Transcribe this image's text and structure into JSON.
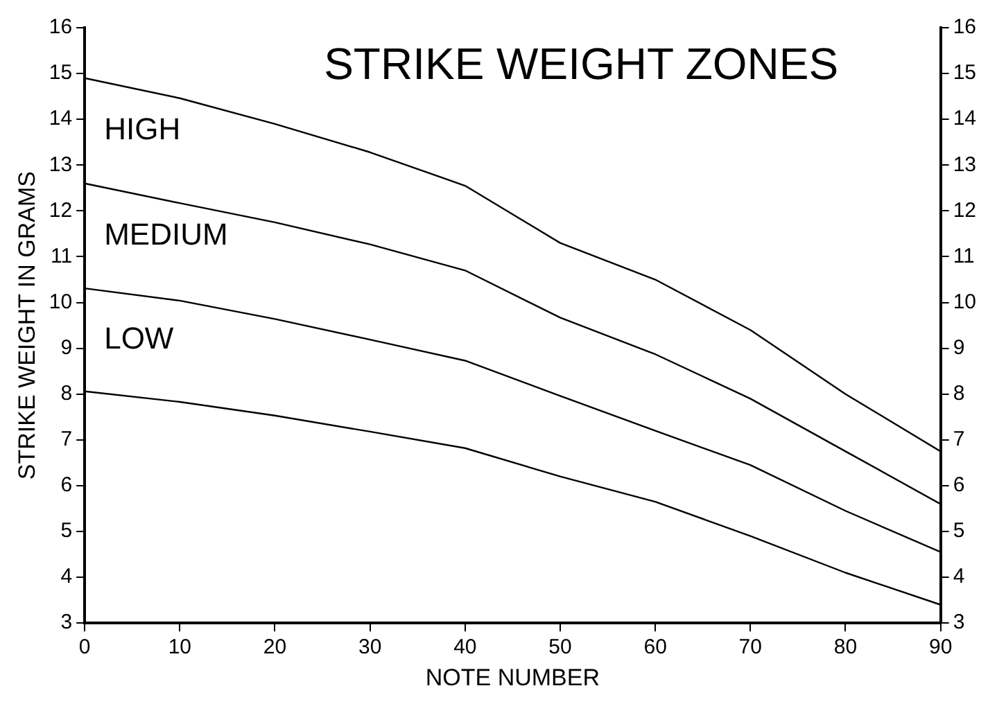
{
  "chart_data": {
    "type": "line",
    "title": "STRIKE WEIGHT ZONES",
    "xlabel": "NOTE NUMBER",
    "ylabel": "STRIKE WEIGHT IN GRAMS",
    "x": [
      0,
      10,
      20,
      30,
      40,
      50,
      60,
      70,
      80,
      90
    ],
    "series": [
      {
        "color": "#000000",
        "values": [
          14.9,
          14.46,
          13.9,
          13.28,
          12.55,
          11.3,
          10.5,
          9.4,
          8.0,
          6.75
        ]
      },
      {
        "color": "#000000",
        "values": [
          12.6,
          12.17,
          11.75,
          11.27,
          10.7,
          9.67,
          8.87,
          7.9,
          6.75,
          5.6
        ]
      },
      {
        "color": "#000000",
        "values": [
          10.31,
          10.04,
          9.64,
          9.19,
          8.73,
          7.96,
          7.2,
          6.45,
          5.45,
          4.55
        ]
      },
      {
        "color": "#000000",
        "values": [
          8.06,
          7.83,
          7.53,
          7.18,
          6.82,
          6.2,
          5.65,
          4.9,
          4.1,
          3.4
        ]
      }
    ],
    "xlim": [
      0,
      90
    ],
    "xticks": [
      0,
      10,
      20,
      30,
      40,
      50,
      60,
      70,
      80,
      90
    ],
    "ylim": [
      3,
      16
    ],
    "yticks": [
      3,
      4,
      5,
      6,
      7,
      8,
      9,
      10,
      11,
      12,
      13,
      14,
      15,
      16
    ],
    "y2lim": [
      3,
      16
    ],
    "y2ticks": [
      3,
      4,
      5,
      6,
      7,
      8,
      9,
      10,
      11,
      12,
      13,
      14,
      15,
      16
    ],
    "annotations": [
      "HIGH",
      "MEDIUM",
      "LOW"
    ],
    "grid": false,
    "legend": false,
    "marker": "none",
    "line_style": "solid"
  }
}
